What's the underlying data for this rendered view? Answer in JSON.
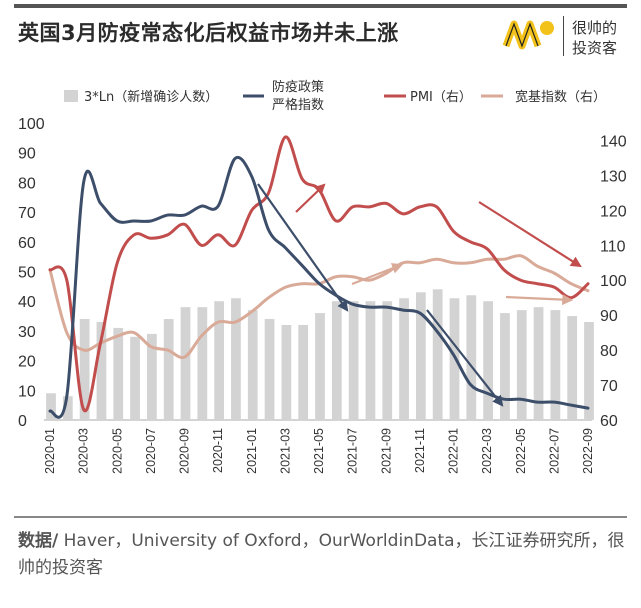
{
  "title": "英国3月防疫常态化后权益市场并未上涨",
  "logo": {
    "line1": "很帅的",
    "line2": "投资客"
  },
  "source": {
    "label": "数据/",
    "text": " Haver，University of Oxford，OurWorldinData，长江证券研究所，很帅的投资客"
  },
  "colors": {
    "bar": "#d3d3d3",
    "stringency": "#3d4e6a",
    "pmi": "#c24d4d",
    "index": "#d9aa98"
  },
  "chart_data": {
    "type": "bar",
    "x": [
      "2020-01",
      "2020-02",
      "2020-03",
      "2020-04",
      "2020-05",
      "2020-06",
      "2020-07",
      "2020-08",
      "2020-09",
      "2020-10",
      "2020-11",
      "2020-12",
      "2021-01",
      "2021-02",
      "2021-03",
      "2021-04",
      "2021-05",
      "2021-06",
      "2021-07",
      "2021-08",
      "2021-09",
      "2021-10",
      "2021-11",
      "2021-12",
      "2022-01",
      "2022-02",
      "2022-03",
      "2022-04",
      "2022-05",
      "2022-06",
      "2022-07",
      "2022-08",
      "2022-09"
    ],
    "x_tick_labels": [
      "2020-01",
      "2020-03",
      "2020-05",
      "2020-07",
      "2020-09",
      "2020-11",
      "2021-01",
      "2021-03",
      "2021-05",
      "2021-07",
      "2021-09",
      "2021-11",
      "2022-01",
      "2022-03",
      "2022-05",
      "2022-07",
      "2022-09"
    ],
    "y_left": {
      "range": [
        0,
        100
      ],
      "ticks": [
        0,
        10,
        20,
        30,
        40,
        50,
        60,
        70,
        80,
        90,
        100
      ]
    },
    "y_right": {
      "range": [
        60,
        145
      ],
      "ticks": [
        60,
        70,
        80,
        90,
        100,
        110,
        120,
        130,
        140
      ]
    },
    "series": [
      {
        "name": "3*Ln（新增确诊人数）",
        "kind": "bar",
        "axis": "left",
        "values": [
          9,
          8,
          34,
          33,
          31,
          28,
          29,
          34,
          38,
          38,
          40,
          41,
          37,
          34,
          32,
          32,
          36,
          40,
          40,
          40,
          40,
          41,
          43,
          44,
          41,
          42,
          40,
          36,
          37,
          38,
          37,
          35,
          33
        ]
      },
      {
        "name": "防疫政策严格指数",
        "kind": "line",
        "axis": "left",
        "values": [
          3,
          8,
          80,
          73,
          67,
          67,
          67,
          69,
          69,
          72,
          72,
          88,
          82,
          64,
          58,
          52,
          46,
          42,
          39,
          38,
          38,
          37,
          36,
          30,
          22,
          12,
          9,
          7,
          7,
          6,
          6,
          5,
          4
        ]
      },
      {
        "name": "PMI（右）",
        "kind": "line",
        "axis": "right",
        "values": [
          103,
          100,
          63,
          82,
          105,
          113,
          112,
          113,
          116,
          110,
          113,
          110,
          120,
          125,
          141,
          129,
          126,
          117,
          121,
          121,
          122,
          119,
          121,
          121,
          114,
          111,
          109,
          103,
          100,
          99,
          98,
          95,
          99
        ]
      },
      {
        "name": "宽基指数（右）",
        "kind": "line",
        "axis": "right",
        "values": [
          103,
          85,
          80,
          82,
          84,
          85,
          81,
          80,
          78,
          84,
          88,
          88,
          91,
          95,
          98,
          99,
          99,
          101,
          101,
          100,
          102,
          105,
          105,
          106,
          105,
          105,
          106,
          106,
          107,
          104,
          102,
          99,
          97
        ]
      }
    ],
    "annotation_arrows": 6
  }
}
